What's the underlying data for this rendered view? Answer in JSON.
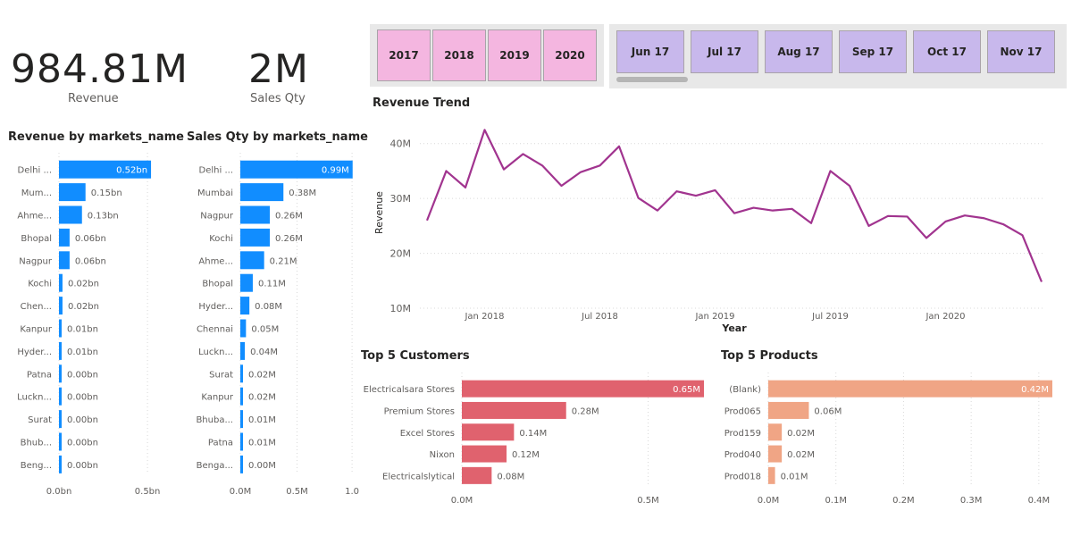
{
  "kpis": {
    "revenue": {
      "value": "984.81M",
      "label": "Revenue"
    },
    "sales_qty": {
      "value": "2M",
      "label": "Sales Qty"
    }
  },
  "year_slicer": [
    "2017",
    "2018",
    "2019",
    "2020"
  ],
  "month_slicer": [
    "Jun 17",
    "Jul 17",
    "Aug 17",
    "Sep 17",
    "Oct 17",
    "Nov 17"
  ],
  "colors": {
    "bar_blue": "#118dff",
    "line_purple": "#a1348f",
    "bar_red": "#e0626e",
    "bar_orange": "#f0a585",
    "year_tile": "#f4b6e0",
    "month_tile": "#c8b8ec"
  },
  "chart_data": [
    {
      "type": "bar",
      "orientation": "horizontal",
      "title": "Revenue by markets_name",
      "categories": [
        "Delhi ...",
        "Mum...",
        "Ahme...",
        "Bhopal",
        "Nagpur",
        "Kochi",
        "Chen...",
        "Kanpur",
        "Hyder...",
        "Patna",
        "Luckn...",
        "Surat",
        "Bhub...",
        "Beng..."
      ],
      "values": [
        0.52,
        0.15,
        0.13,
        0.06,
        0.06,
        0.02,
        0.02,
        0.01,
        0.01,
        0.0,
        0.0,
        0.0,
        0.0,
        0.0
      ],
      "data_labels": [
        "0.52bn",
        "0.15bn",
        "0.13bn",
        "0.06bn",
        "0.06bn",
        "0.02bn",
        "0.02bn",
        "0.01bn",
        "0.01bn",
        "0.00bn",
        "0.00bn",
        "0.00bn",
        "0.00bn",
        "0.00bn"
      ],
      "x_ticks": [
        "0.0bn",
        "0.5bn"
      ],
      "xlim": [
        0,
        0.55
      ]
    },
    {
      "type": "bar",
      "orientation": "horizontal",
      "title": "Sales Qty by markets_name",
      "categories": [
        "Delhi ...",
        "Mumbai",
        "Nagpur",
        "Kochi",
        "Ahme...",
        "Bhopal",
        "Hyder...",
        "Chennai",
        "Luckn...",
        "Surat",
        "Kanpur",
        "Bhuba...",
        "Patna",
        "Benga..."
      ],
      "values": [
        0.99,
        0.38,
        0.26,
        0.26,
        0.21,
        0.11,
        0.08,
        0.05,
        0.04,
        0.02,
        0.02,
        0.01,
        0.01,
        0.0
      ],
      "data_labels": [
        "0.99M",
        "0.38M",
        "0.26M",
        "0.26M",
        "0.21M",
        "0.11M",
        "0.08M",
        "0.05M",
        "0.04M",
        "0.02M",
        "0.02M",
        "0.01M",
        "0.01M",
        "0.00M"
      ],
      "x_ticks": [
        "0.0M",
        "0.5M",
        "1.0"
      ],
      "xlim": [
        0,
        1.0
      ]
    },
    {
      "type": "line",
      "title": "Revenue Trend",
      "xlabel": "Year",
      "ylabel": "Revenue",
      "x": [
        "2017-10",
        "2017-11",
        "2017-12",
        "2018-01",
        "2018-02",
        "2018-03",
        "2018-04",
        "2018-05",
        "2018-06",
        "2018-07",
        "2018-08",
        "2018-09",
        "2018-10",
        "2018-11",
        "2018-12",
        "2019-01",
        "2019-02",
        "2019-03",
        "2019-04",
        "2019-05",
        "2019-06",
        "2019-07",
        "2019-08",
        "2019-09",
        "2019-10",
        "2019-11",
        "2019-12",
        "2020-01",
        "2020-02",
        "2020-03",
        "2020-04",
        "2020-05",
        "2020-06"
      ],
      "values": [
        26.0,
        35.0,
        32.0,
        42.5,
        35.3,
        38.1,
        36.0,
        32.3,
        34.8,
        36.0,
        39.5,
        30.1,
        27.8,
        31.3,
        30.5,
        31.5,
        27.3,
        28.3,
        27.8,
        28.1,
        25.5,
        35.0,
        32.3,
        25.0,
        26.8,
        26.7,
        22.8,
        25.8,
        26.9,
        26.4,
        25.3,
        23.3,
        14.8
      ],
      "y_ticks": [
        "10M",
        "20M",
        "30M",
        "40M"
      ],
      "ylim": [
        10,
        45
      ],
      "x_ticks": [
        "Jan 2018",
        "Jul 2018",
        "Jan 2019",
        "Jul 2019",
        "Jan 2020"
      ],
      "x_tick_positions": [
        "2018-01",
        "2018-07",
        "2019-01",
        "2019-07",
        "2020-01"
      ]
    },
    {
      "type": "bar",
      "orientation": "horizontal",
      "title": "Top 5 Customers",
      "categories": [
        "Electricalsara Stores",
        "Premium Stores",
        "Excel Stores",
        "Nixon",
        "Electricalslytical"
      ],
      "values": [
        0.65,
        0.28,
        0.14,
        0.12,
        0.08
      ],
      "data_labels": [
        "0.65M",
        "0.28M",
        "0.14M",
        "0.12M",
        "0.08M"
      ],
      "x_ticks": [
        "0.0M",
        "0.5M"
      ],
      "xlim": [
        0,
        0.65
      ]
    },
    {
      "type": "bar",
      "orientation": "horizontal",
      "title": "Top 5 Products",
      "categories": [
        "(Blank)",
        "Prod065",
        "Prod159",
        "Prod040",
        "Prod018"
      ],
      "values": [
        0.42,
        0.06,
        0.02,
        0.02,
        0.01
      ],
      "data_labels": [
        "0.42M",
        "0.06M",
        "0.02M",
        "0.02M",
        "0.01M"
      ],
      "x_ticks": [
        "0.0M",
        "0.1M",
        "0.2M",
        "0.3M",
        "0.4M"
      ],
      "xlim": [
        0,
        0.42
      ]
    }
  ]
}
